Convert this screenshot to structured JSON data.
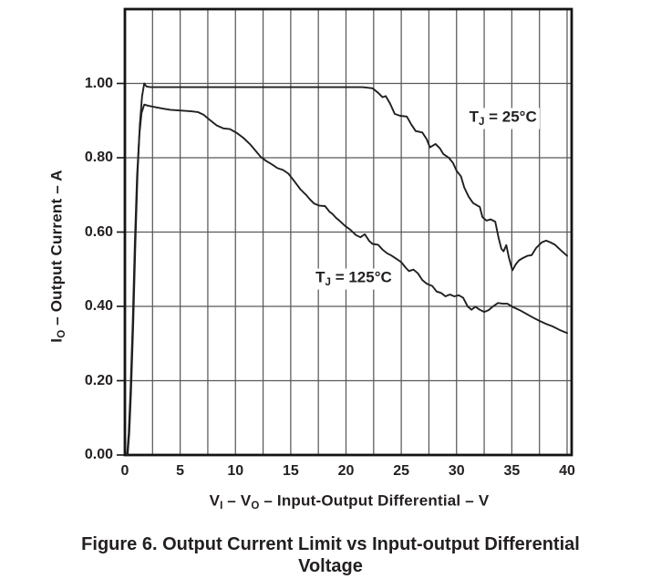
{
  "figure": {
    "caption_line1": "Figure 6. Output Current Limit vs Input-output Differential",
    "caption_line2": "Voltage"
  },
  "chart_data": {
    "type": "line",
    "title": "",
    "xlabel": "VI – VO – Input-Output Differential – V",
    "ylabel": "IO – Output Current – A",
    "xlabel_parts": [
      {
        "t": "V"
      },
      {
        "t": "I",
        "sub": true
      },
      {
        "t": " – V"
      },
      {
        "t": "O",
        "sub": true
      },
      {
        "t": " – Input-Output Differential – V"
      }
    ],
    "ylabel_parts": [
      {
        "t": "I"
      },
      {
        "t": "O",
        "sub": true
      },
      {
        "t": " – Output Current – A"
      }
    ],
    "xlim": [
      0,
      40
    ],
    "ylim": [
      0,
      1.2
    ],
    "x_ticks": [
      {
        "v": 0,
        "label": "0"
      },
      {
        "v": 5,
        "label": "5"
      },
      {
        "v": 10,
        "label": "10"
      },
      {
        "v": 15,
        "label": "15"
      },
      {
        "v": 20,
        "label": "20"
      },
      {
        "v": 25,
        "label": "25"
      },
      {
        "v": 30,
        "label": "30"
      },
      {
        "v": 35,
        "label": "35"
      },
      {
        "v": 40,
        "label": "40"
      }
    ],
    "y_ticks": [
      {
        "v": 0.0,
        "label": "0.00"
      },
      {
        "v": 0.2,
        "label": "0.20"
      },
      {
        "v": 0.4,
        "label": "0.40"
      },
      {
        "v": 0.6,
        "label": "0.60"
      },
      {
        "v": 0.8,
        "label": "0.80"
      },
      {
        "v": 1.0,
        "label": "1.00"
      }
    ],
    "x_minor_grid_step": 2.5,
    "grid": true,
    "legend_position": "inline-annotations",
    "grid_color": "#59595b",
    "frame_color": "#141414",
    "curve_color": "#231f20",
    "series": [
      {
        "name": "TJ = 25°C",
        "label_parts": [
          {
            "t": "T"
          },
          {
            "t": "J",
            "sub": true
          },
          {
            "t": " = 25°C"
          }
        ],
        "label_x": 34.2,
        "label_y": 0.905,
        "points": [
          [
            0.25,
            0.0
          ],
          [
            0.4,
            0.06
          ],
          [
            0.55,
            0.17
          ],
          [
            0.75,
            0.35
          ],
          [
            0.95,
            0.57
          ],
          [
            1.15,
            0.76
          ],
          [
            1.35,
            0.89
          ],
          [
            1.55,
            0.965
          ],
          [
            1.75,
            1.0
          ],
          [
            1.95,
            0.992
          ],
          [
            2.3,
            0.99
          ],
          [
            4,
            0.99
          ],
          [
            6,
            0.99
          ],
          [
            8,
            0.99
          ],
          [
            10,
            0.99
          ],
          [
            12,
            0.99
          ],
          [
            14,
            0.99
          ],
          [
            16,
            0.99
          ],
          [
            18,
            0.99
          ],
          [
            20,
            0.99
          ],
          [
            21.5,
            0.99
          ],
          [
            22.4,
            0.987
          ],
          [
            22.9,
            0.975
          ],
          [
            23.3,
            0.963
          ],
          [
            23.6,
            0.966
          ],
          [
            24.0,
            0.945
          ],
          [
            24.4,
            0.918
          ],
          [
            24.9,
            0.913
          ],
          [
            25.5,
            0.911
          ],
          [
            25.9,
            0.89
          ],
          [
            26.3,
            0.872
          ],
          [
            26.9,
            0.868
          ],
          [
            27.3,
            0.85
          ],
          [
            27.6,
            0.828
          ],
          [
            28.1,
            0.837
          ],
          [
            28.5,
            0.825
          ],
          [
            28.8,
            0.81
          ],
          [
            29.3,
            0.8
          ],
          [
            29.7,
            0.785
          ],
          [
            30.0,
            0.765
          ],
          [
            30.4,
            0.75
          ],
          [
            30.7,
            0.72
          ],
          [
            31.1,
            0.695
          ],
          [
            31.5,
            0.678
          ],
          [
            31.9,
            0.671
          ],
          [
            32.1,
            0.668
          ],
          [
            32.35,
            0.64
          ],
          [
            32.7,
            0.631
          ],
          [
            33.1,
            0.634
          ],
          [
            33.5,
            0.628
          ],
          [
            33.8,
            0.585
          ],
          [
            34.05,
            0.555
          ],
          [
            34.25,
            0.548
          ],
          [
            34.5,
            0.565
          ],
          [
            34.75,
            0.53
          ],
          [
            35.05,
            0.497
          ],
          [
            35.35,
            0.513
          ],
          [
            35.65,
            0.524
          ],
          [
            36.0,
            0.53
          ],
          [
            36.4,
            0.536
          ],
          [
            36.8,
            0.538
          ],
          [
            37.2,
            0.557
          ],
          [
            37.7,
            0.572
          ],
          [
            38.1,
            0.577
          ],
          [
            38.5,
            0.572
          ],
          [
            38.9,
            0.566
          ],
          [
            39.4,
            0.552
          ],
          [
            40,
            0.536
          ]
        ]
      },
      {
        "name": "TJ = 125°C",
        "label_parts": [
          {
            "t": "T"
          },
          {
            "t": "J",
            "sub": true
          },
          {
            "t": " = 125°C"
          }
        ],
        "label_x": 20.7,
        "label_y": 0.474,
        "points": [
          [
            0.2,
            0.0
          ],
          [
            0.35,
            0.06
          ],
          [
            0.5,
            0.17
          ],
          [
            0.7,
            0.35
          ],
          [
            0.9,
            0.57
          ],
          [
            1.1,
            0.75
          ],
          [
            1.3,
            0.86
          ],
          [
            1.5,
            0.92
          ],
          [
            1.75,
            0.943
          ],
          [
            2.1,
            0.94
          ],
          [
            2.6,
            0.937
          ],
          [
            3.3,
            0.933
          ],
          [
            4.1,
            0.929
          ],
          [
            5.0,
            0.927
          ],
          [
            6.0,
            0.925
          ],
          [
            6.6,
            0.923
          ],
          [
            7.1,
            0.916
          ],
          [
            7.7,
            0.901
          ],
          [
            8.3,
            0.887
          ],
          [
            8.9,
            0.879
          ],
          [
            9.5,
            0.877
          ],
          [
            10.1,
            0.867
          ],
          [
            10.7,
            0.854
          ],
          [
            11.3,
            0.837
          ],
          [
            11.9,
            0.816
          ],
          [
            12.3,
            0.802
          ],
          [
            12.8,
            0.791
          ],
          [
            13.3,
            0.782
          ],
          [
            13.8,
            0.772
          ],
          [
            14.3,
            0.767
          ],
          [
            14.8,
            0.757
          ],
          [
            15.3,
            0.738
          ],
          [
            15.9,
            0.714
          ],
          [
            16.4,
            0.7
          ],
          [
            16.7,
            0.689
          ],
          [
            17.1,
            0.677
          ],
          [
            17.6,
            0.671
          ],
          [
            18.1,
            0.67
          ],
          [
            18.5,
            0.655
          ],
          [
            18.8,
            0.648
          ],
          [
            19.1,
            0.638
          ],
          [
            19.4,
            0.631
          ],
          [
            19.9,
            0.617
          ],
          [
            20.4,
            0.606
          ],
          [
            20.9,
            0.592
          ],
          [
            21.3,
            0.586
          ],
          [
            21.7,
            0.594
          ],
          [
            22.1,
            0.576
          ],
          [
            22.4,
            0.568
          ],
          [
            22.9,
            0.566
          ],
          [
            23.3,
            0.553
          ],
          [
            23.7,
            0.543
          ],
          [
            24.1,
            0.537
          ],
          [
            24.6,
            0.527
          ],
          [
            25.0,
            0.519
          ],
          [
            25.4,
            0.504
          ],
          [
            25.7,
            0.495
          ],
          [
            26.1,
            0.499
          ],
          [
            26.5,
            0.489
          ],
          [
            26.9,
            0.471
          ],
          [
            27.3,
            0.461
          ],
          [
            27.8,
            0.455
          ],
          [
            28.2,
            0.44
          ],
          [
            28.6,
            0.436
          ],
          [
            29.0,
            0.427
          ],
          [
            29.4,
            0.432
          ],
          [
            29.8,
            0.427
          ],
          [
            30.2,
            0.43
          ],
          [
            30.6,
            0.423
          ],
          [
            31.0,
            0.4
          ],
          [
            31.35,
            0.391
          ],
          [
            31.7,
            0.399
          ],
          [
            32.1,
            0.391
          ],
          [
            32.5,
            0.385
          ],
          [
            32.9,
            0.39
          ],
          [
            33.3,
            0.4
          ],
          [
            33.75,
            0.409
          ],
          [
            34.2,
            0.407
          ],
          [
            34.6,
            0.407
          ],
          [
            35.1,
            0.398
          ],
          [
            35.7,
            0.39
          ],
          [
            36.3,
            0.38
          ],
          [
            36.9,
            0.37
          ],
          [
            37.5,
            0.361
          ],
          [
            38.1,
            0.353
          ],
          [
            38.7,
            0.346
          ],
          [
            39.3,
            0.337
          ],
          [
            40,
            0.328
          ]
        ]
      }
    ]
  }
}
